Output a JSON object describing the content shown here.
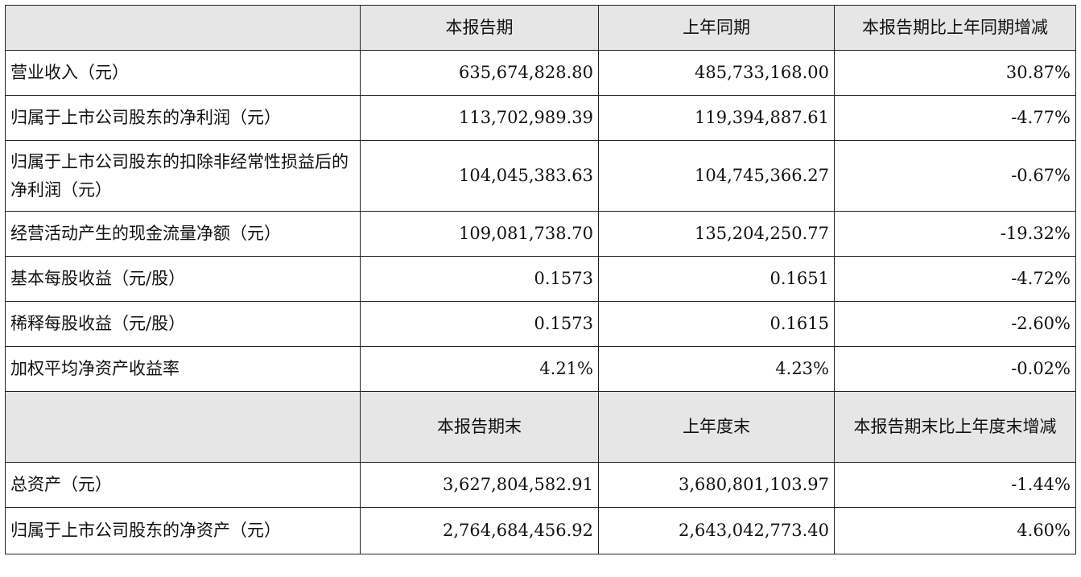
{
  "header1": [
    "",
    "本报告期",
    "上年同期",
    "本报告期比上年同期增减"
  ],
  "rows1": [
    {
      "label": "营业收入（元）",
      "current": "635,674,828.80",
      "prior": "485,733,168.00",
      "change": "30.87%"
    },
    {
      "label": "归属于上市公司股东的净利润（元）",
      "current": "113,702,989.39",
      "prior": "119,394,887.61",
      "change": "-4.77%"
    },
    {
      "label": "归属于上市公司股东的扣除非经常性损益后的净利润（元）",
      "current": "104,045,383.63",
      "prior": "104,745,366.27",
      "change": "-0.67%"
    },
    {
      "label": "经营活动产生的现金流量净额（元）",
      "current": "109,081,738.70",
      "prior": "135,204,250.77",
      "change": "-19.32%"
    },
    {
      "label": "基本每股收益（元/股）",
      "current": "0.1573",
      "prior": "0.1651",
      "change": "-4.72%"
    },
    {
      "label": "稀释每股收益（元/股）",
      "current": "0.1573",
      "prior": "0.1615",
      "change": "-2.60%"
    },
    {
      "label": "加权平均净资产收益率",
      "current": "4.21%",
      "prior": "4.23%",
      "change": "-0.02%"
    }
  ],
  "header2": [
    "",
    "本报告期末",
    "上年度末",
    "本报告期末比上年度末增减"
  ],
  "rows2": [
    {
      "label": "总资产（元）",
      "current": "3,627,804,582.91",
      "prior": "3,680,801,103.97",
      "change": "-1.44%"
    },
    {
      "label": "归属于上市公司股东的净资产（元）",
      "current": "2,764,684,456.92",
      "prior": "2,643,042,773.40",
      "change": "4.60%"
    }
  ]
}
